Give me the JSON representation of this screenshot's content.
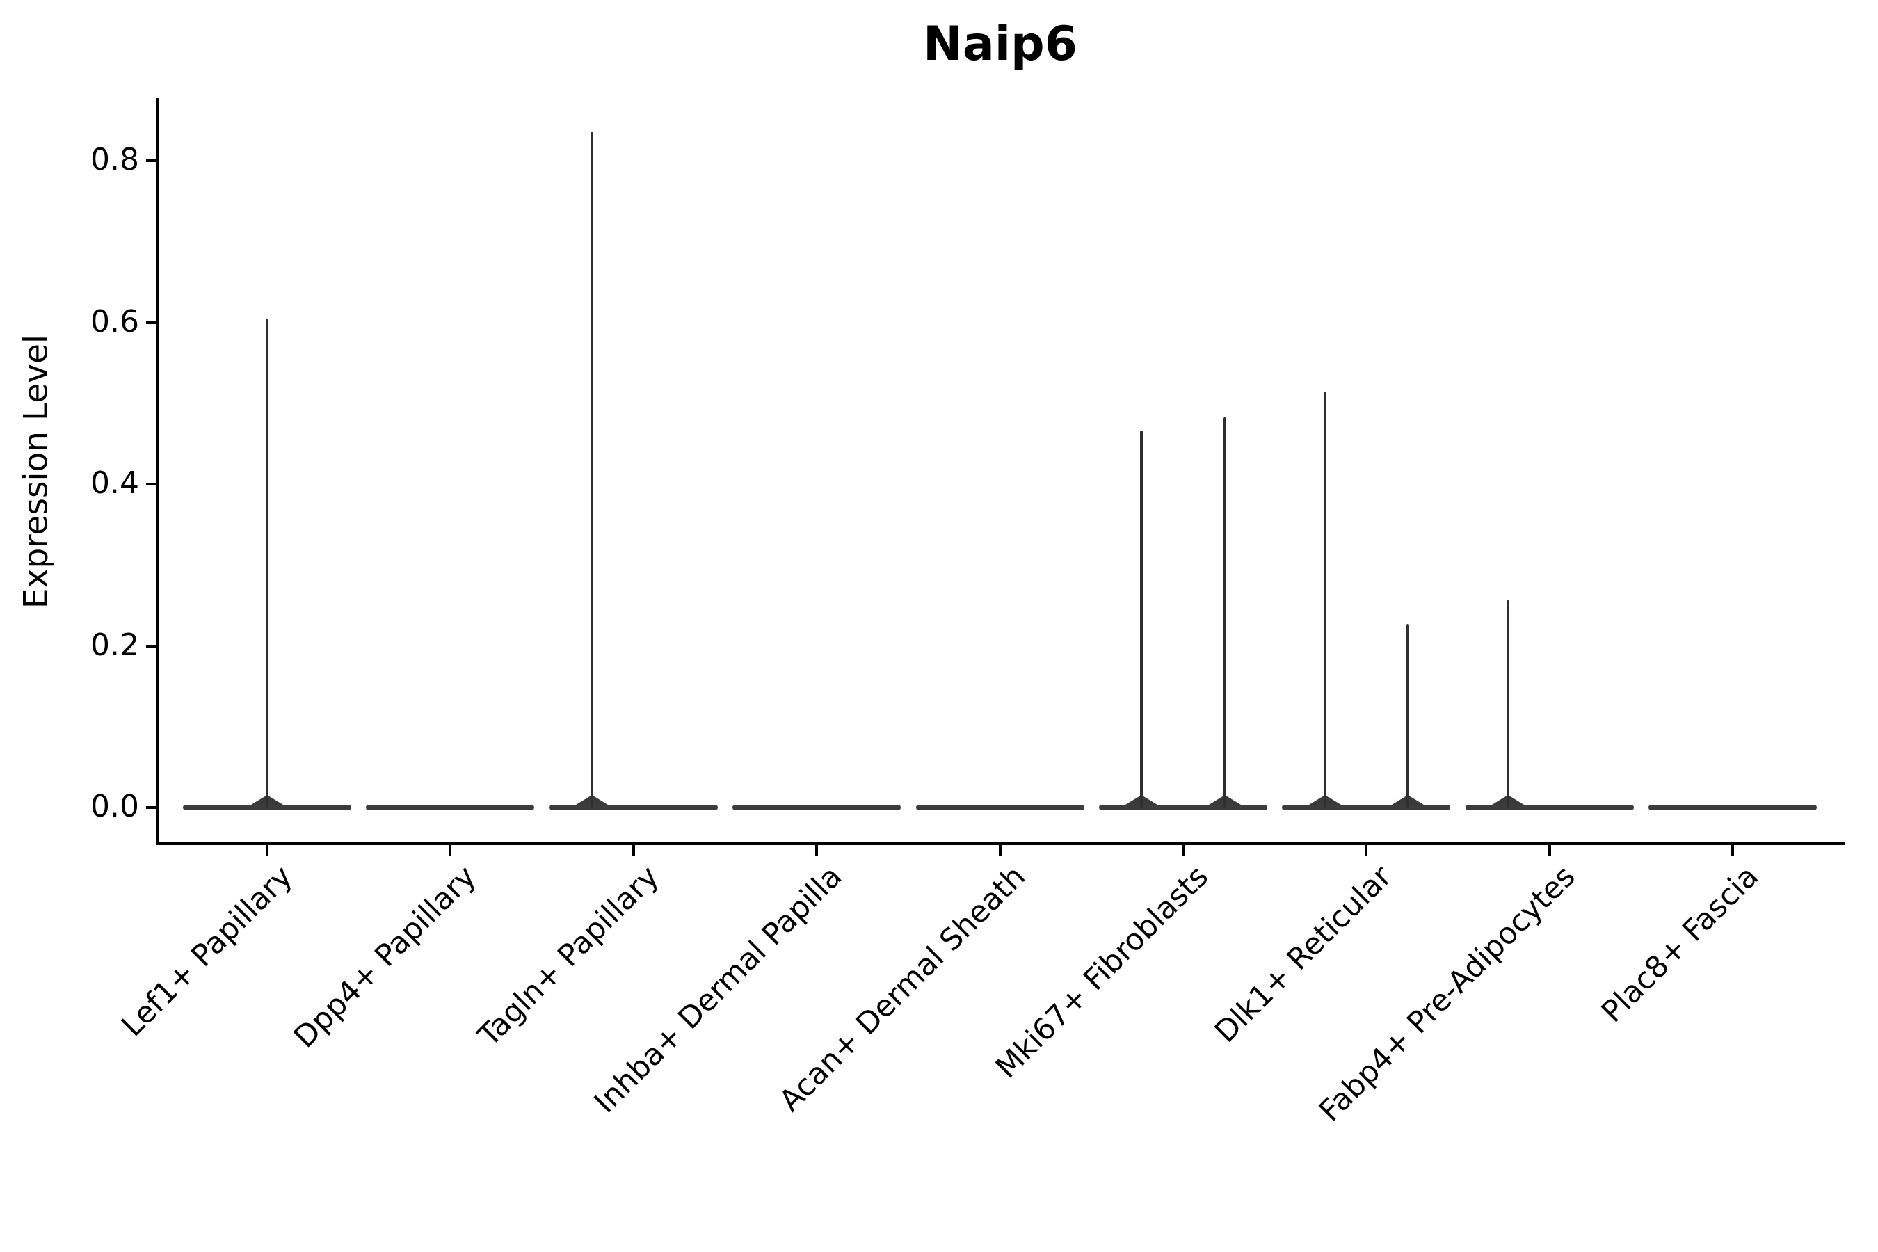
{
  "chart_data": {
    "type": "violin",
    "title": "Naip6",
    "ylabel": "Expression Level",
    "xlabel": "",
    "grid": false,
    "legend": null,
    "ylim": [
      -0.044,
      0.878
    ],
    "ytick_labels": [
      "0.0",
      "0.2",
      "0.4",
      "0.6",
      "0.8"
    ],
    "ytick_values": [
      0.0,
      0.2,
      0.4,
      0.6,
      0.8
    ],
    "categories": [
      "Lef1+ Papillary",
      "Dpp4+ Papillary",
      "Tagln+ Papillary",
      "Inhba+ Dermal Papilla",
      "Acan+ Dermal Sheath",
      "Mki67+ Fibroblasts",
      "Dlk1+ Reticular",
      "Fabp4+ Pre-Adipocytes",
      "Plac8+ Fascia"
    ],
    "violins": [
      {
        "category": "Lef1+ Papillary",
        "baseline_value": 0.0,
        "spikes": [
          {
            "offset_frac": 0.0,
            "max": 0.605
          }
        ]
      },
      {
        "category": "Dpp4+ Papillary",
        "baseline_value": 0.0,
        "spikes": []
      },
      {
        "category": "Tagln+ Papillary",
        "baseline_value": 0.0,
        "spikes": [
          {
            "offset_frac": -0.227,
            "max": 0.835
          }
        ]
      },
      {
        "category": "Inhba+ Dermal Papilla",
        "baseline_value": 0.0,
        "spikes": []
      },
      {
        "category": "Acan+ Dermal Sheath",
        "baseline_value": 0.0,
        "spikes": []
      },
      {
        "category": "Mki67+ Fibroblasts",
        "baseline_value": 0.0,
        "spikes": [
          {
            "offset_frac": -0.227,
            "max": 0.466
          },
          {
            "offset_frac": 0.227,
            "max": 0.483
          }
        ]
      },
      {
        "category": "Dlk1+ Reticular",
        "baseline_value": 0.0,
        "spikes": [
          {
            "offset_frac": -0.227,
            "max": 0.514
          },
          {
            "offset_frac": 0.227,
            "max": 0.227
          }
        ]
      },
      {
        "category": "Fabp4+ Pre-Adipocytes",
        "baseline_value": 0.0,
        "spikes": [
          {
            "offset_frac": -0.227,
            "max": 0.256
          }
        ]
      },
      {
        "category": "Plac8+ Fascia",
        "baseline_value": 0.0,
        "spikes": []
      }
    ],
    "colors": {
      "violin_fill": "#3c3c3c",
      "spike": "#2f2f2f",
      "axis": "#000000",
      "text": "#000000",
      "background": "#ffffff"
    }
  }
}
